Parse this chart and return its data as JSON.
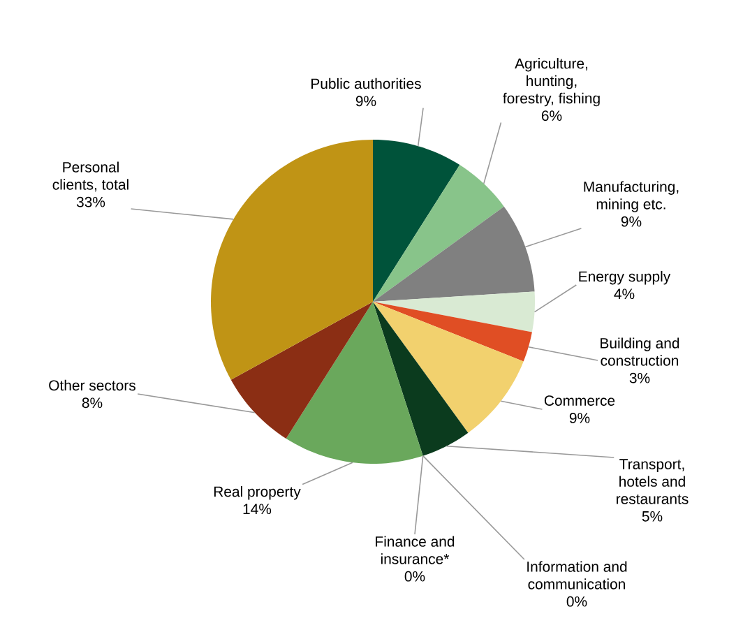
{
  "chart_data": {
    "type": "pie",
    "categories": [
      "Public authorities",
      "Agriculture, hunting, forestry, fishing",
      "Manufacturing, mining etc.",
      "Energy supply",
      "Building and construction",
      "Commerce",
      "Transport, hotels and restaurants",
      "Information and communication",
      "Finance and insurance*",
      "Real property",
      "Other sectors",
      "Personal clients, total"
    ],
    "values": [
      9,
      6,
      9,
      4,
      3,
      9,
      5,
      0,
      0,
      14,
      8,
      33
    ],
    "value_labels": [
      "9%",
      "6%",
      "9%",
      "4%",
      "3%",
      "9%",
      "5%",
      "0%",
      "0%",
      "14%",
      "8%",
      "33%"
    ],
    "colors": [
      "#00533a",
      "#88c48a",
      "#808080",
      "#d9ead3",
      "#e04e24",
      "#f2d16e",
      "#0b3b1e",
      "#0f3f2a",
      "#2e6b3a",
      "#6aa85c",
      "#8b2e14",
      "#c09415"
    ]
  }
}
